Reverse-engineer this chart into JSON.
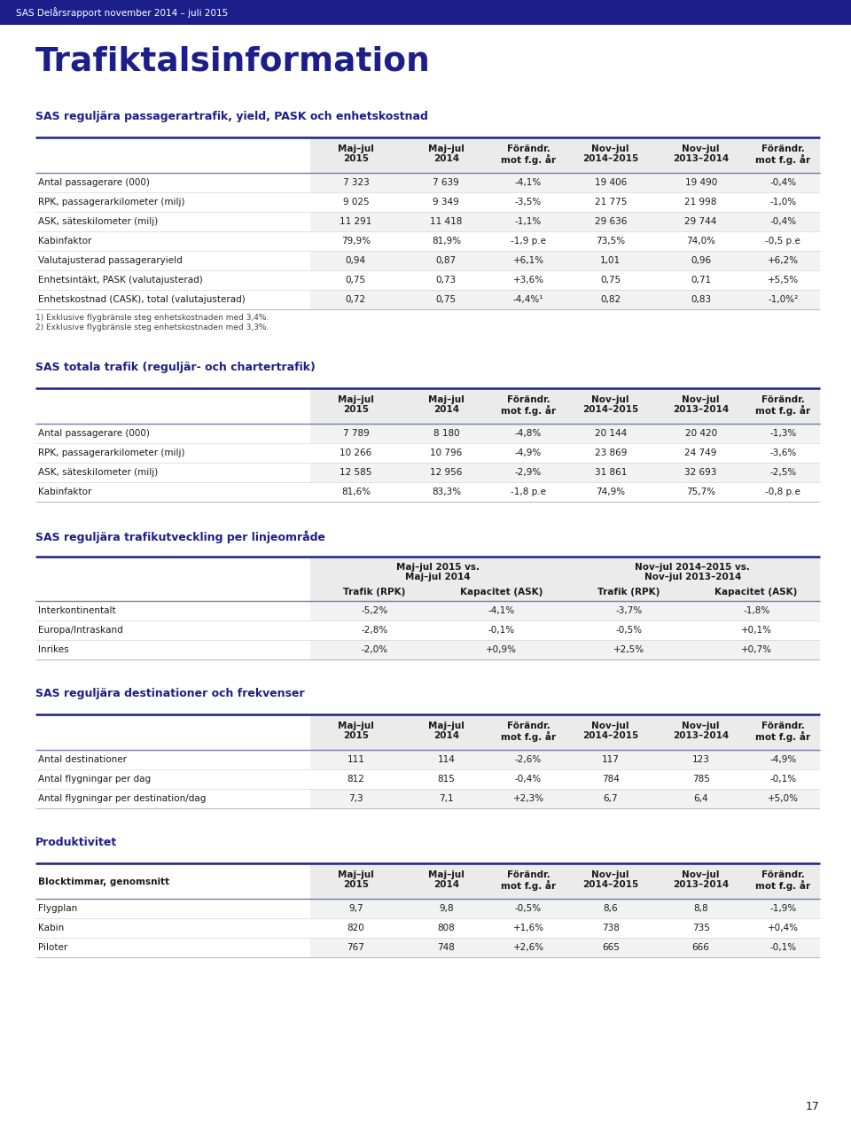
{
  "header_text": "SAS Delårsrapport november 2014 – juli 2015",
  "header_bg": "#1c1f8a",
  "header_text_color": "#ffffff",
  "page_bg": "#ffffff",
  "title_text": "Trafiktalsinformation",
  "title_color": "#1c1f8a",
  "section_title_color": "#1c1f8a",
  "dark_blue": "#1c1f8a",
  "line_dark": "#1c1f8a",
  "line_light": "#cccccc",
  "shade_col": "#ebebeb",
  "shade_row_odd": "#f2f2f2",
  "page_number": "17",
  "section1_title": "SAS reguljära passagerartrafik, yield, PASK och enhetskostnad",
  "section1_col_headers": [
    "",
    "Maj–jul\n2015",
    "Maj–jul\n2014",
    "Förändr.\nmot f.g. år",
    "Nov–jul\n2014–2015",
    "Nov–jul\n2013–2014",
    "Förändr.\nmot f.g. år"
  ],
  "section1_rows": [
    [
      "Antal passagerare (000)",
      "7 323",
      "7 639",
      "-4,1%",
      "19 406",
      "19 490",
      "-0,4%"
    ],
    [
      "RPK, passagerarkilometer (milj)",
      "9 025",
      "9 349",
      "-3,5%",
      "21 775",
      "21 998",
      "-1,0%"
    ],
    [
      "ASK, säteskilometer (milj)",
      "11 291",
      "11 418",
      "-1,1%",
      "29 636",
      "29 744",
      "-0,4%"
    ],
    [
      "Kabinfaktor",
      "79,9%",
      "81,9%",
      "-1,9 p.e",
      "73,5%",
      "74,0%",
      "-0,5 p.e"
    ],
    [
      "Valutajusterad passageraryield",
      "0,94",
      "0,87",
      "+6,1%",
      "1,01",
      "0,96",
      "+6,2%"
    ],
    [
      "Enhetsintäkt, PASK (valutajusterad)",
      "0,75",
      "0,73",
      "+3,6%",
      "0,75",
      "0,71",
      "+5,5%"
    ],
    [
      "Enhetskostnad (CASK), total (valutajusterad)",
      "0,72",
      "0,75",
      "-4,4%¹",
      "0,82",
      "0,83",
      "-1,0%²"
    ]
  ],
  "section1_footnotes": [
    "1) Exklusive flygbränsle steg enhetskostnaden med 3,4%.",
    "2) Exklusive flygbränsle steg enhetskostnaden med 3,3%."
  ],
  "section2_title": "SAS totala trafik (reguljär- och chartertrafik)",
  "section2_col_headers": [
    "",
    "Maj–jul\n2015",
    "Maj–jul\n2014",
    "Förändr.\nmot f.g. år",
    "Nov–jul\n2014–2015",
    "Nov–jul\n2013–2014",
    "Förändr.\nmot f.g. år"
  ],
  "section2_rows": [
    [
      "Antal passagerare (000)",
      "7 789",
      "8 180",
      "-4,8%",
      "20 144",
      "20 420",
      "-1,3%"
    ],
    [
      "RPK, passagerarkilometer (milj)",
      "10 266",
      "10 796",
      "-4,9%",
      "23 869",
      "24 749",
      "-3,6%"
    ],
    [
      "ASK, säteskilometer (milj)",
      "12 585",
      "12 956",
      "-2,9%",
      "31 861",
      "32 693",
      "-2,5%"
    ],
    [
      "Kabinfaktor",
      "81,6%",
      "83,3%",
      "-1,8 p.e",
      "74,9%",
      "75,7%",
      "-0,8 p.e"
    ]
  ],
  "section3_title": "SAS reguljära trafikutveckling per linjeområde",
  "section3_group_headers": [
    "Maj–jul 2015 vs.\nMaj–jul 2014",
    "Nov–jul 2014–2015 vs.\nNov–jul 2013–2014"
  ],
  "section3_col_headers": [
    "",
    "Trafik (RPK)",
    "Kapacitet (ASK)",
    "Trafik (RPK)",
    "Kapacitet (ASK)"
  ],
  "section3_rows": [
    [
      "Interkontinentalt",
      "-5,2%",
      "-4,1%",
      "-3,7%",
      "-1,8%"
    ],
    [
      "Europa/Intraskand",
      "-2,8%",
      "-0,1%",
      "-0,5%",
      "+0,1%"
    ],
    [
      "Inrikes",
      "-2,0%",
      "+0,9%",
      "+2,5%",
      "+0,7%"
    ]
  ],
  "section4_title": "SAS reguljära destinationer och frekvenser",
  "section4_col_headers": [
    "",
    "Maj–jul\n2015",
    "Maj–jul\n2014",
    "Förändr.\nmot f.g. år",
    "Nov–jul\n2014–2015",
    "Nov–jul\n2013–2014",
    "Förändr.\nmot f.g. år"
  ],
  "section4_rows": [
    [
      "Antal destinationer",
      "111",
      "114",
      "-2,6%",
      "117",
      "123",
      "-4,9%"
    ],
    [
      "Antal flygningar per dag",
      "812",
      "815",
      "-0,4%",
      "784",
      "785",
      "-0,1%"
    ],
    [
      "Antal flygningar per destination/dag",
      "7,3",
      "7,1",
      "+2,3%",
      "6,7",
      "6,4",
      "+5,0%"
    ]
  ],
  "section5_title": "Produktivitet",
  "section5_col_headers": [
    "Blocktimmar, genomsnitt",
    "Maj–jul\n2015",
    "Maj–jul\n2014",
    "Förändr.\nmot f.g. år",
    "Nov–jul\n2014–2015",
    "Nov–jul\n2013–2014",
    "Förändr.\nmot f.g. år"
  ],
  "section5_rows": [
    [
      "Flygplan",
      "9,7",
      "9,8",
      "-0,5%",
      "8,6",
      "8,8",
      "-1,9%"
    ],
    [
      "Kabin",
      "820",
      "808",
      "+1,6%",
      "738",
      "735",
      "+0,4%"
    ],
    [
      "Piloter",
      "767",
      "748",
      "+2,6%",
      "665",
      "666",
      "-0,1%"
    ]
  ]
}
